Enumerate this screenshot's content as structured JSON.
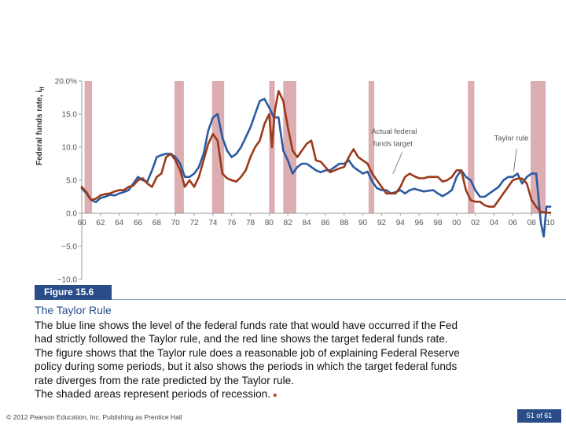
{
  "chart_data": {
    "type": "line",
    "ylabel": "Federal funds rate, i",
    "ylabel_sub": "ff",
    "ylim": [
      -10,
      20
    ],
    "y_ticks": [
      {
        "value": 20,
        "label": "20.0%"
      },
      {
        "value": 15,
        "label": "15.0"
      },
      {
        "value": 10,
        "label": "10.0"
      },
      {
        "value": 5,
        "label": "5.0"
      },
      {
        "value": 0,
        "label": "0.0"
      },
      {
        "value": -5,
        "label": "−5.0"
      },
      {
        "value": -10,
        "label": "−10.0"
      }
    ],
    "xlim": [
      1960,
      2010
    ],
    "x_ticks": [
      {
        "value": 1960,
        "label": "60"
      },
      {
        "value": 1962,
        "label": "62"
      },
      {
        "value": 1964,
        "label": "64"
      },
      {
        "value": 1966,
        "label": "66"
      },
      {
        "value": 1968,
        "label": "68"
      },
      {
        "value": 1970,
        "label": "70"
      },
      {
        "value": 1972,
        "label": "72"
      },
      {
        "value": 1974,
        "label": "74"
      },
      {
        "value": 1976,
        "label": "76"
      },
      {
        "value": 1978,
        "label": "78"
      },
      {
        "value": 1980,
        "label": "80"
      },
      {
        "value": 1982,
        "label": "82"
      },
      {
        "value": 1984,
        "label": "84"
      },
      {
        "value": 1986,
        "label": "86"
      },
      {
        "value": 1988,
        "label": "88"
      },
      {
        "value": 1990,
        "label": "90"
      },
      {
        "value": 1992,
        "label": "92"
      },
      {
        "value": 1994,
        "label": "94"
      },
      {
        "value": 1996,
        "label": "96"
      },
      {
        "value": 1998,
        "label": "98"
      },
      {
        "value": 2000,
        "label": "00"
      },
      {
        "value": 2002,
        "label": "02"
      },
      {
        "value": 2004,
        "label": "04"
      },
      {
        "value": 2006,
        "label": "06"
      },
      {
        "value": 2008,
        "label": "08"
      },
      {
        "value": 2010,
        "label": "10"
      }
    ],
    "recessions": [
      [
        1960.3,
        1961.1
      ],
      [
        1969.9,
        1970.9
      ],
      [
        1973.9,
        1975.2
      ],
      [
        1980.0,
        1980.6
      ],
      [
        1981.5,
        1982.9
      ],
      [
        1990.6,
        1991.2
      ],
      [
        2001.2,
        2001.9
      ],
      [
        2007.9,
        2009.5
      ]
    ],
    "annotations": [
      {
        "text": "Actual federal",
        "x": 1990.9,
        "y": 12.0
      },
      {
        "text": "funds target",
        "x": 1991.1,
        "y": 10.2
      },
      {
        "text": "Taylor rule",
        "x": 2004.0,
        "y": 11.0
      }
    ],
    "series": [
      {
        "name": "Taylor rule",
        "color": "#2b5aa0",
        "x": [
          1960.0,
          1960.5,
          1961.0,
          1961.5,
          1962.0,
          1962.5,
          1963.0,
          1963.5,
          1964.0,
          1964.5,
          1965.0,
          1965.5,
          1966.0,
          1966.5,
          1967.0,
          1967.5,
          1968.0,
          1968.5,
          1969.0,
          1969.5,
          1970.0,
          1970.5,
          1971.0,
          1971.5,
          1972.0,
          1972.5,
          1973.0,
          1973.5,
          1974.0,
          1974.5,
          1975.0,
          1975.5,
          1976.0,
          1976.5,
          1977.0,
          1977.5,
          1978.0,
          1978.5,
          1979.0,
          1979.5,
          1980.0,
          1980.5,
          1981.0,
          1981.5,
          1982.0,
          1982.5,
          1983.0,
          1983.5,
          1984.0,
          1984.5,
          1985.0,
          1985.5,
          1986.0,
          1986.5,
          1987.0,
          1987.5,
          1988.0,
          1988.5,
          1989.0,
          1989.5,
          1990.0,
          1990.5,
          1991.0,
          1991.5,
          1992.0,
          1992.5,
          1993.0,
          1993.5,
          1994.0,
          1994.5,
          1995.0,
          1995.5,
          1996.0,
          1996.5,
          1997.0,
          1997.5,
          1998.0,
          1998.5,
          1999.0,
          1999.5,
          2000.0,
          2000.5,
          2001.0,
          2001.5,
          2002.0,
          2002.5,
          2003.0,
          2003.5,
          2004.0,
          2004.5,
          2005.0,
          2005.5,
          2006.0,
          2006.5,
          2007.0,
          2007.5,
          2008.0,
          2008.5,
          2009.0,
          2009.3,
          2009.6,
          2010.0
        ],
        "y": [
          3.8,
          3.0,
          2.0,
          1.7,
          2.3,
          2.5,
          2.8,
          2.7,
          3.0,
          3.2,
          3.5,
          4.5,
          5.5,
          5.0,
          4.8,
          6.5,
          8.5,
          8.8,
          9.0,
          9.0,
          8.5,
          7.5,
          5.5,
          5.5,
          6.0,
          7.0,
          9.0,
          12.5,
          14.5,
          15.0,
          11.5,
          9.5,
          8.5,
          9.0,
          10.0,
          11.5,
          13.0,
          15.0,
          17.0,
          17.3,
          16.0,
          14.5,
          14.5,
          9.5,
          8.0,
          6.0,
          7.0,
          7.5,
          7.5,
          7.0,
          6.5,
          6.2,
          6.5,
          6.5,
          7.0,
          7.5,
          7.5,
          8.0,
          7.0,
          6.5,
          6.0,
          6.3,
          4.8,
          3.8,
          3.5,
          3.5,
          3.0,
          3.2,
          3.5,
          3.0,
          3.5,
          3.7,
          3.5,
          3.3,
          3.4,
          3.5,
          3.0,
          2.6,
          3.0,
          3.5,
          5.5,
          6.5,
          5.5,
          5.0,
          3.5,
          2.5,
          2.5,
          3.0,
          3.5,
          4.0,
          5.0,
          5.5,
          5.5,
          6.0,
          4.5,
          5.5,
          6.0,
          6.0,
          -1.5,
          -3.5,
          1.0,
          1.0
        ]
      },
      {
        "name": "Actual federal funds target",
        "color": "#9a3a1a",
        "x": [
          1960.0,
          1960.5,
          1961.0,
          1961.5,
          1962.0,
          1962.5,
          1963.0,
          1963.5,
          1964.0,
          1964.5,
          1965.0,
          1965.5,
          1966.0,
          1966.5,
          1967.0,
          1967.5,
          1968.0,
          1968.5,
          1969.0,
          1969.5,
          1970.0,
          1970.5,
          1971.0,
          1971.5,
          1972.0,
          1972.5,
          1973.0,
          1973.5,
          1974.0,
          1974.5,
          1975.0,
          1975.5,
          1976.0,
          1976.5,
          1977.0,
          1977.5,
          1978.0,
          1978.5,
          1979.0,
          1979.5,
          1980.0,
          1980.3,
          1980.6,
          1981.0,
          1981.5,
          1982.0,
          1982.5,
          1983.0,
          1983.5,
          1984.0,
          1984.5,
          1985.0,
          1985.5,
          1986.0,
          1986.5,
          1987.0,
          1987.5,
          1988.0,
          1988.5,
          1989.0,
          1989.5,
          1990.0,
          1990.5,
          1991.0,
          1991.5,
          1992.0,
          1992.5,
          1993.0,
          1993.5,
          1994.0,
          1994.5,
          1995.0,
          1995.5,
          1996.0,
          1996.5,
          1997.0,
          1997.5,
          1998.0,
          1998.5,
          1999.0,
          1999.5,
          2000.0,
          2000.5,
          2001.0,
          2001.5,
          2002.0,
          2002.5,
          2003.0,
          2003.5,
          2004.0,
          2004.5,
          2005.0,
          2005.5,
          2006.0,
          2006.5,
          2007.0,
          2007.5,
          2008.0,
          2008.5,
          2009.0,
          2009.5,
          2010.0
        ],
        "y": [
          4.0,
          3.2,
          2.0,
          2.2,
          2.7,
          2.9,
          3.0,
          3.3,
          3.5,
          3.5,
          4.0,
          4.2,
          5.0,
          5.3,
          4.5,
          4.0,
          5.5,
          6.0,
          8.5,
          9.0,
          8.0,
          6.5,
          4.0,
          5.0,
          4.0,
          5.5,
          8.0,
          10.5,
          12.0,
          11.0,
          6.0,
          5.3,
          5.0,
          4.8,
          5.5,
          6.5,
          8.5,
          10.0,
          11.0,
          13.5,
          15.0,
          10.0,
          15.5,
          18.5,
          17.0,
          13.0,
          9.5,
          8.5,
          9.5,
          10.5,
          11.0,
          8.0,
          7.8,
          7.0,
          6.2,
          6.5,
          6.8,
          7.0,
          8.5,
          9.7,
          8.5,
          8.0,
          7.5,
          6.0,
          5.0,
          4.0,
          3.0,
          3.0,
          3.0,
          4.0,
          5.5,
          6.0,
          5.6,
          5.3,
          5.3,
          5.5,
          5.5,
          5.5,
          4.8,
          5.0,
          5.5,
          6.5,
          6.5,
          3.5,
          2.0,
          1.75,
          1.75,
          1.2,
          1.0,
          1.0,
          2.0,
          3.0,
          4.0,
          5.0,
          5.25,
          5.25,
          4.5,
          2.0,
          1.0,
          0.2,
          0.1,
          0.1
        ]
      }
    ]
  },
  "figure_label": "Figure 15.6",
  "figure_title": "The Taylor Rule",
  "caption_lines": [
    "The blue line shows the level of the federal funds rate that would have occurred if the Fed",
    "had strictly followed the Taylor rule, and the red line shows the target federal funds rate.",
    "The figure shows that the Taylor rule does a reasonable job of explaining Federal Reserve",
    "policy during some periods, but it also shows the periods in which the target federal funds",
    "rate diverges from the rate predicted by the Taylor rule.",
    "The shaded areas represent periods of recession."
  ],
  "footer_copyright": "© 2012 Pearson Education, Inc. Publishing as Prentice Hall",
  "page_indicator": "51 of 61",
  "colors": {
    "accent": "#2a4d8a",
    "recession_band": "#dcaeb2",
    "taylor_line": "#2b5aa0",
    "actual_line": "#9a3a1a"
  }
}
